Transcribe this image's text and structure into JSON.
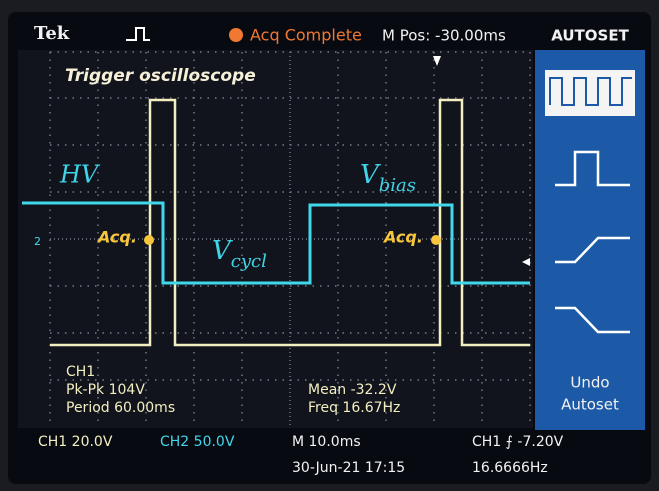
{
  "header": {
    "brand": "Tek",
    "status": "Acq Complete",
    "position": "M Pos: -30.00ms",
    "button": "AUTOSET"
  },
  "annotations": {
    "title": "Trigger oscilloscope",
    "hv": "HV",
    "vbias": {
      "main": "V",
      "sub": "bias"
    },
    "vcycl": {
      "main": "V",
      "sub": "cycl"
    },
    "acq": [
      "Acq.",
      "Acq."
    ]
  },
  "channel_marker": "2",
  "measurements": {
    "channel": "CH1",
    "pk_pk": "Pk-Pk 104V",
    "period": "Period 60.00ms",
    "mean": "Mean -32.2V",
    "freq": "Freq 16.67Hz"
  },
  "side_menu": {
    "undo": [
      "Undo",
      "Autoset"
    ]
  },
  "footer": {
    "ch1": "CH1 20.0V",
    "ch2": "CH2 50.0V",
    "timebase": "M 10.0ms",
    "trigger": "CH1 ⨍ -7.20V",
    "date": "30-Jun-21 17:15",
    "trigger_freq": "16.6666Hz"
  }
}
